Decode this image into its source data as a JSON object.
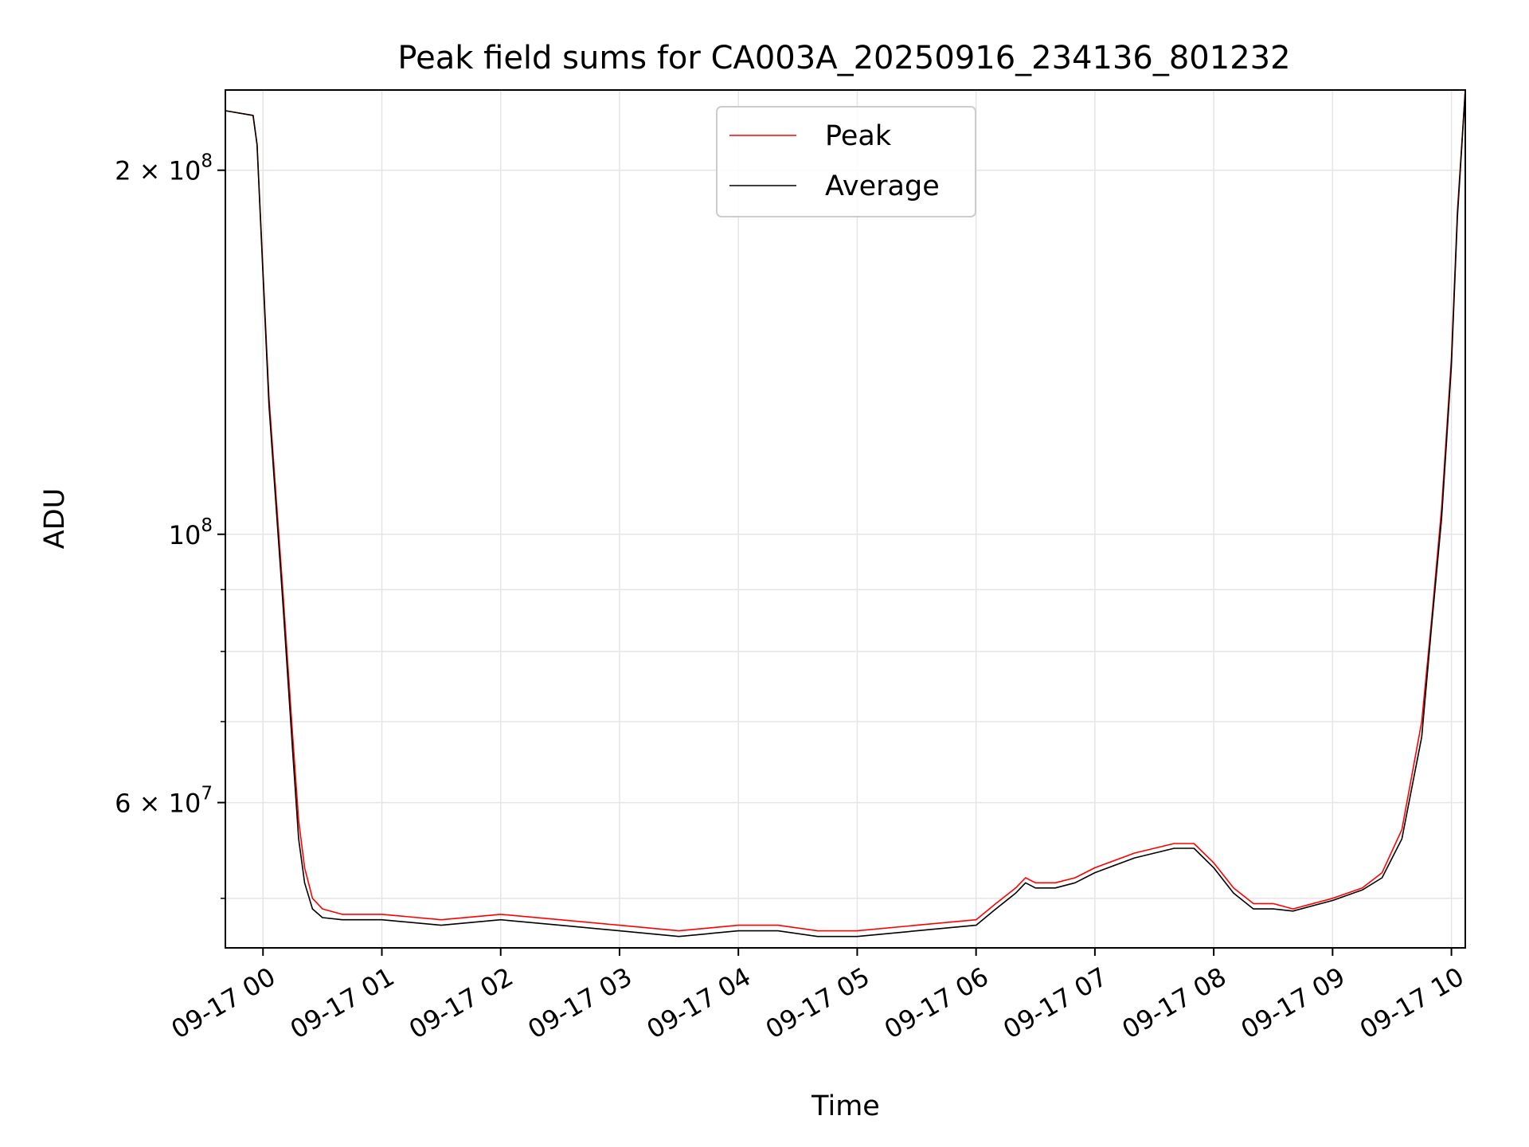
{
  "chart_data": {
    "type": "line",
    "title": "Peak field sums for CA003A_20250916_234136_801232",
    "xlabel": "Time",
    "ylabel": "ADU",
    "yscale": "log",
    "grid": true,
    "legend": {
      "placement": "top-center"
    },
    "xlim": [
      "2025-09-16 23:41",
      "2025-09-17 10:07"
    ],
    "ylim": [
      45500000,
      233000000
    ],
    "x_ticks": [
      {
        "value": "2025-09-17 00:00",
        "label": "09-17 00"
      },
      {
        "value": "2025-09-17 01:00",
        "label": "09-17 01"
      },
      {
        "value": "2025-09-17 02:00",
        "label": "09-17 02"
      },
      {
        "value": "2025-09-17 03:00",
        "label": "09-17 03"
      },
      {
        "value": "2025-09-17 04:00",
        "label": "09-17 04"
      },
      {
        "value": "2025-09-17 05:00",
        "label": "09-17 05"
      },
      {
        "value": "2025-09-17 06:00",
        "label": "09-17 06"
      },
      {
        "value": "2025-09-17 07:00",
        "label": "09-17 07"
      },
      {
        "value": "2025-09-17 08:00",
        "label": "09-17 08"
      },
      {
        "value": "2025-09-17 09:00",
        "label": "09-17 09"
      },
      {
        "value": "2025-09-17 10:00",
        "label": "09-17 10"
      }
    ],
    "y_major_ticks": [
      {
        "value": 60000000,
        "base": "6",
        "exp": "7"
      },
      {
        "value": 100000000,
        "base": "",
        "exp": "8"
      },
      {
        "value": 200000000,
        "base": "2",
        "exp": "8"
      }
    ],
    "y_minor_ticks": [
      50000000,
      70000000,
      80000000,
      90000000
    ],
    "series": [
      {
        "name": "Peak",
        "color": "#ff0000",
        "x": [
          "2025-09-16 23:41",
          "2025-09-16 23:55",
          "2025-09-16 23:57",
          "2025-09-17 00:03",
          "2025-09-17 00:10",
          "2025-09-17 00:15",
          "2025-09-17 00:18",
          "2025-09-17 00:21",
          "2025-09-17 00:25",
          "2025-09-17 00:30",
          "2025-09-17 00:40",
          "2025-09-17 01:00",
          "2025-09-17 01:30",
          "2025-09-17 02:00",
          "2025-09-17 02:30",
          "2025-09-17 03:00",
          "2025-09-17 03:30",
          "2025-09-17 04:00",
          "2025-09-17 04:20",
          "2025-09-17 04:40",
          "2025-09-17 05:00",
          "2025-09-17 05:30",
          "2025-09-17 06:00",
          "2025-09-17 06:10",
          "2025-09-17 06:20",
          "2025-09-17 06:25",
          "2025-09-17 06:30",
          "2025-09-17 06:40",
          "2025-09-17 06:50",
          "2025-09-17 07:00",
          "2025-09-17 07:20",
          "2025-09-17 07:40",
          "2025-09-17 07:50",
          "2025-09-17 08:00",
          "2025-09-17 08:10",
          "2025-09-17 08:20",
          "2025-09-17 08:30",
          "2025-09-17 08:40",
          "2025-09-17 09:00",
          "2025-09-17 09:15",
          "2025-09-17 09:25",
          "2025-09-17 09:35",
          "2025-09-17 09:45",
          "2025-09-17 09:50",
          "2025-09-17 09:55",
          "2025-09-17 10:00",
          "2025-09-17 10:03",
          "2025-09-17 10:07"
        ],
        "values": [
          224000000,
          222000000,
          210000000,
          130000000,
          90000000,
          68000000,
          58000000,
          53000000,
          50000000,
          49000000,
          48500000,
          48500000,
          48000000,
          48500000,
          48000000,
          47500000,
          47000000,
          47500000,
          47500000,
          47000000,
          47000000,
          47500000,
          48000000,
          49500000,
          51000000,
          52000000,
          51500000,
          51500000,
          52000000,
          53000000,
          54500000,
          55500000,
          55500000,
          53500000,
          51000000,
          49500000,
          49500000,
          49000000,
          50000000,
          51000000,
          52500000,
          57000000,
          70000000,
          85000000,
          105000000,
          140000000,
          185000000,
          233000000
        ]
      },
      {
        "name": "Average",
        "color": "#000000",
        "x": [
          "2025-09-16 23:41",
          "2025-09-16 23:55",
          "2025-09-16 23:57",
          "2025-09-17 00:03",
          "2025-09-17 00:10",
          "2025-09-17 00:15",
          "2025-09-17 00:18",
          "2025-09-17 00:21",
          "2025-09-17 00:25",
          "2025-09-17 00:30",
          "2025-09-17 00:40",
          "2025-09-17 01:00",
          "2025-09-17 01:30",
          "2025-09-17 02:00",
          "2025-09-17 02:30",
          "2025-09-17 03:00",
          "2025-09-17 03:30",
          "2025-09-17 04:00",
          "2025-09-17 04:20",
          "2025-09-17 04:40",
          "2025-09-17 05:00",
          "2025-09-17 05:30",
          "2025-09-17 06:00",
          "2025-09-17 06:10",
          "2025-09-17 06:20",
          "2025-09-17 06:25",
          "2025-09-17 06:30",
          "2025-09-17 06:40",
          "2025-09-17 06:50",
          "2025-09-17 07:00",
          "2025-09-17 07:20",
          "2025-09-17 07:40",
          "2025-09-17 07:50",
          "2025-09-17 08:00",
          "2025-09-17 08:10",
          "2025-09-17 08:20",
          "2025-09-17 08:30",
          "2025-09-17 08:40",
          "2025-09-17 09:00",
          "2025-09-17 09:15",
          "2025-09-17 09:25",
          "2025-09-17 09:35",
          "2025-09-17 09:45",
          "2025-09-17 09:50",
          "2025-09-17 09:55",
          "2025-09-17 10:00",
          "2025-09-17 10:03",
          "2025-09-17 10:07"
        ],
        "values": [
          224000000,
          222000000,
          210000000,
          128000000,
          88000000,
          66000000,
          56000000,
          51500000,
          49000000,
          48200000,
          48000000,
          48000000,
          47500000,
          48000000,
          47500000,
          47000000,
          46500000,
          47000000,
          47000000,
          46500000,
          46500000,
          47000000,
          47500000,
          49000000,
          50500000,
          51500000,
          51000000,
          51000000,
          51500000,
          52500000,
          54000000,
          55000000,
          55000000,
          53000000,
          50500000,
          49000000,
          49000000,
          48800000,
          49800000,
          50800000,
          52000000,
          56000000,
          68000000,
          84000000,
          103000000,
          138000000,
          183000000,
          233000000
        ]
      }
    ]
  }
}
